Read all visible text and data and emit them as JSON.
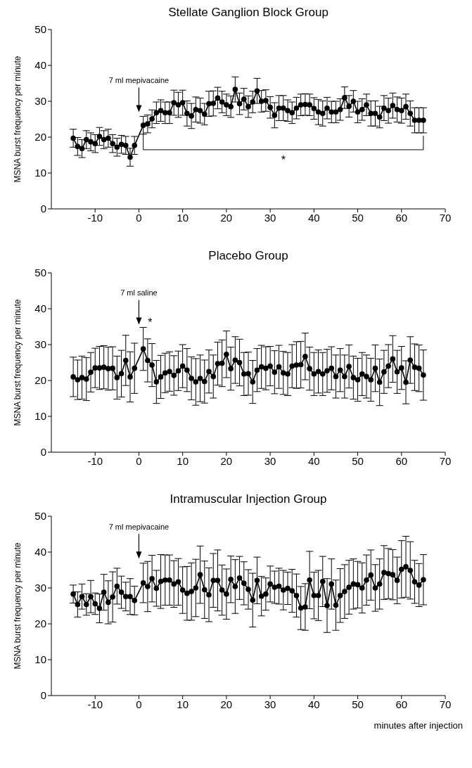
{
  "chart_data": [
    {
      "type": "line",
      "title": "Stellate Ganglion Block Group",
      "ylabel": "MSNA burst frequency per minute",
      "xlim": [
        -20,
        70
      ],
      "xticks": [
        -10,
        0,
        10,
        20,
        30,
        40,
        50,
        60,
        70
      ],
      "ylim": [
        0,
        50
      ],
      "yticks": [
        0,
        10,
        20,
        30,
        40,
        50
      ],
      "marker": "circle",
      "line_style": "solid",
      "x": [
        -15,
        -14,
        -13,
        -12,
        -11,
        -10,
        -9,
        -8,
        -7,
        -6,
        -5,
        -4,
        -3,
        -2,
        -1,
        1,
        2,
        3,
        4,
        5,
        6,
        7,
        8,
        9,
        10,
        11,
        12,
        13,
        14,
        15,
        16,
        17,
        18,
        19,
        20,
        21,
        22,
        23,
        24,
        25,
        26,
        27,
        28,
        29,
        30,
        31,
        32,
        33,
        34,
        35,
        36,
        37,
        38,
        39,
        40,
        41,
        42,
        43,
        44,
        45,
        46,
        47,
        48,
        49,
        50,
        51,
        52,
        53,
        54,
        55,
        56,
        57,
        58,
        59,
        60,
        61,
        62,
        63,
        64,
        65
      ],
      "series": [
        {
          "color": "#000000",
          "values": [
            19.7,
            17.4,
            16.8,
            19.3,
            18.7,
            18.2,
            20.2,
            19.3,
            19.7,
            18.2,
            17.2,
            18,
            17.7,
            14.4,
            17.7,
            23.3,
            23.7,
            25.1,
            26.8,
            27.4,
            26.8,
            26.8,
            29.6,
            29,
            29.6,
            26.6,
            25.9,
            27.7,
            27.4,
            26.4,
            29.3,
            29.4,
            30.9,
            29.8,
            29,
            28.5,
            33.3,
            29.3,
            30.6,
            28.5,
            29.8,
            32.9,
            30,
            30.2,
            28.3,
            26.1,
            28.1,
            28.1,
            27.4,
            26.8,
            28.1,
            29,
            29.1,
            29,
            28,
            27,
            26.6,
            28.1,
            27,
            27,
            27.7,
            31,
            28.6,
            30,
            27,
            27.7,
            29,
            26.6,
            26.6,
            25.6,
            28.1,
            27.4,
            28.8,
            27.7,
            27.4,
            28.5,
            26.6,
            24.7,
            24.7,
            24.7
          ],
          "errors": [
            2.5,
            2.5,
            2.5,
            2.5,
            2.5,
            2.5,
            2.5,
            2.5,
            2.5,
            2.5,
            2.5,
            2.5,
            2.5,
            2.5,
            2.5,
            2.5,
            2.5,
            2.5,
            3,
            3,
            3,
            3,
            3.5,
            3.5,
            3.5,
            3.5,
            3.5,
            3.5,
            3.5,
            3,
            3.5,
            3.5,
            3,
            3,
            3,
            3,
            3.5,
            3,
            3,
            3,
            3,
            3.5,
            3,
            3,
            3,
            3.5,
            3.5,
            3.5,
            3,
            3,
            3,
            3,
            3,
            3,
            3,
            3.5,
            3.5,
            3,
            3,
            3,
            3,
            3,
            3,
            3,
            3,
            3,
            3,
            3.5,
            3.5,
            3,
            3.5,
            3.5,
            3.5,
            3.5,
            3.5,
            3.5,
            3.5,
            3.5,
            3.5,
            3.5
          ]
        }
      ],
      "annotations": [
        "7 ml mepivacaine",
        "*"
      ]
    },
    {
      "type": "line",
      "title": "Placebo Group",
      "ylabel": "MSNA burst frequency per minute",
      "xlim": [
        -20,
        70
      ],
      "xticks": [
        -10,
        0,
        10,
        20,
        30,
        40,
        50,
        60,
        70
      ],
      "ylim": [
        0,
        50
      ],
      "yticks": [
        0,
        10,
        20,
        30,
        40,
        50
      ],
      "marker": "circle",
      "line_style": "solid",
      "x": [
        -15,
        -14,
        -13,
        -12,
        -11,
        -10,
        -9,
        -8,
        -7,
        -6,
        -5,
        -4,
        -3,
        -2,
        -1,
        1,
        2,
        3,
        4,
        5,
        6,
        7,
        8,
        9,
        10,
        11,
        12,
        13,
        14,
        15,
        16,
        17,
        18,
        19,
        20,
        21,
        22,
        23,
        24,
        25,
        26,
        27,
        28,
        29,
        30,
        31,
        32,
        33,
        34,
        35,
        36,
        37,
        38,
        39,
        40,
        41,
        42,
        43,
        44,
        45,
        46,
        47,
        48,
        49,
        50,
        51,
        52,
        53,
        54,
        55,
        56,
        57,
        58,
        59,
        60,
        61,
        62,
        63,
        64,
        65
      ],
      "series": [
        {
          "color": "#000000",
          "values": [
            21,
            20.2,
            20.8,
            20.4,
            22.3,
            23.5,
            23.5,
            23.7,
            23.3,
            23.4,
            20.8,
            21.9,
            25.6,
            21,
            23.4,
            28.8,
            25.6,
            24.3,
            19.6,
            21,
            22.1,
            22.5,
            21.4,
            22.7,
            24,
            22.9,
            20.6,
            19.6,
            20.6,
            19.7,
            22.5,
            21.1,
            24.7,
            24.8,
            27.3,
            23.3,
            25.7,
            25,
            21.8,
            21.9,
            19.6,
            22.9,
            23.8,
            23.4,
            24,
            22.3,
            23.8,
            22.1,
            21.8,
            24,
            24.3,
            24.4,
            26.7,
            23.3,
            21.8,
            22.5,
            21.8,
            22.7,
            23.4,
            21.1,
            22.9,
            21.1,
            23.9,
            20.8,
            20.2,
            21.8,
            21.1,
            20.2,
            23.4,
            19.5,
            22.4,
            24,
            26,
            22.4,
            23.5,
            19.5,
            25.7,
            23.7,
            23.4,
            21.5
          ],
          "errors": [
            5.5,
            5.5,
            6,
            6,
            5.5,
            5.5,
            6,
            6,
            6,
            6,
            6,
            6.5,
            7,
            7,
            7,
            6,
            6,
            6,
            6,
            6,
            5.5,
            5.5,
            5.5,
            5.5,
            6,
            6,
            6,
            6.5,
            6.5,
            6,
            6,
            6,
            6,
            6.5,
            6.5,
            6,
            6.5,
            6.5,
            6,
            6,
            6,
            6,
            6,
            6,
            5.5,
            6,
            6,
            6,
            6,
            6,
            6.5,
            6.5,
            6.5,
            6,
            6,
            6,
            6,
            6,
            6,
            6,
            6,
            6,
            6,
            6,
            6,
            6,
            6,
            6,
            6.5,
            6.5,
            6,
            6,
            6.5,
            6,
            6,
            6,
            6.5,
            6.5,
            6.5,
            7
          ]
        }
      ],
      "annotations": [
        "7 ml saline",
        "*"
      ]
    },
    {
      "type": "line",
      "title": "Intramuscular Injection Group",
      "ylabel": "MSNA burst frequency per minute",
      "xlabel": "minutes after injection",
      "xlim": [
        -20,
        70
      ],
      "xticks": [
        -10,
        0,
        10,
        20,
        30,
        40,
        50,
        60,
        70
      ],
      "ylim": [
        0,
        50
      ],
      "yticks": [
        0,
        10,
        20,
        30,
        40,
        50
      ],
      "marker": "circle",
      "line_style": "solid",
      "x": [
        -15,
        -14,
        -13,
        -12,
        -11,
        -10,
        -9,
        -8,
        -7,
        -6,
        -5,
        -4,
        -3,
        -2,
        -1,
        1,
        2,
        3,
        4,
        5,
        6,
        7,
        8,
        9,
        10,
        11,
        12,
        13,
        14,
        15,
        16,
        17,
        18,
        19,
        20,
        21,
        22,
        23,
        24,
        25,
        26,
        27,
        28,
        29,
        30,
        31,
        32,
        33,
        34,
        35,
        36,
        37,
        38,
        39,
        40,
        41,
        42,
        43,
        44,
        45,
        46,
        47,
        48,
        49,
        50,
        51,
        52,
        53,
        54,
        55,
        56,
        57,
        58,
        59,
        60,
        61,
        62,
        63,
        64,
        65
      ],
      "series": [
        {
          "color": "#000000",
          "values": [
            28.3,
            25.4,
            27.6,
            25.4,
            27.6,
            25.6,
            24.3,
            28.8,
            26,
            27.5,
            30.5,
            28.8,
            27.6,
            27.6,
            26.5,
            31.4,
            30.4,
            32.6,
            29.9,
            31.8,
            32.2,
            32.2,
            31.1,
            31.7,
            29.4,
            28.5,
            29,
            30,
            33.7,
            29.5,
            28.1,
            32.1,
            32.1,
            29.4,
            28.3,
            32.4,
            30.4,
            32.8,
            31.3,
            29.6,
            26.6,
            32.1,
            27.7,
            28.3,
            31.1,
            30.2,
            30.5,
            29.4,
            29.9,
            29.2,
            27.9,
            24.4,
            24.7,
            32.2,
            27.9,
            27.9,
            31.8,
            25.1,
            31.1,
            25.2,
            27.9,
            29,
            30.2,
            31.1,
            30.9,
            30,
            32.2,
            33.6,
            30,
            31.1,
            34.3,
            34,
            33.7,
            32.1,
            35.2,
            35.9,
            34.9,
            31.7,
            30.8,
            32.3
          ],
          "errors": [
            2.5,
            3.5,
            3.5,
            3,
            4.5,
            3,
            4,
            5,
            6,
            7,
            5,
            4.5,
            4,
            5,
            4,
            5.5,
            7,
            6.5,
            5,
            7.5,
            7,
            7,
            6.5,
            6.5,
            6.5,
            7.5,
            8,
            8,
            8,
            8,
            7.5,
            7.5,
            8.5,
            7,
            7,
            6.5,
            7.5,
            6,
            6,
            5.5,
            7.5,
            6.5,
            5.5,
            4.5,
            5,
            4.5,
            5,
            5.5,
            4.5,
            6,
            6,
            6,
            6.5,
            8,
            6.5,
            7,
            7,
            7.5,
            7,
            7,
            7.5,
            7.5,
            7.5,
            7,
            6.5,
            7,
            7,
            7,
            6.5,
            7,
            7.5,
            7,
            7,
            6.5,
            8,
            8.5,
            8,
            6,
            6,
            7
          ]
        }
      ],
      "annotations": [
        "7 ml mepivacaine"
      ]
    }
  ]
}
